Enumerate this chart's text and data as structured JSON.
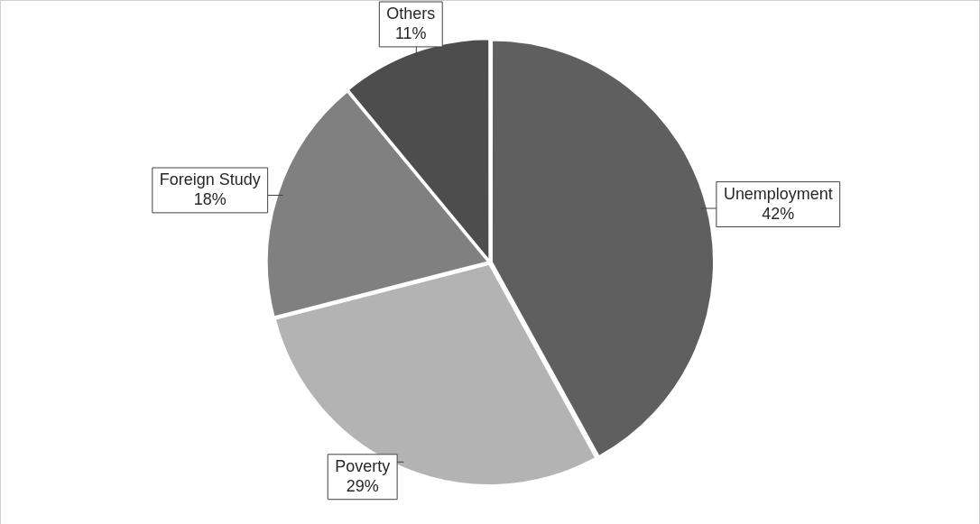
{
  "chart_data": {
    "type": "pie",
    "categories": [
      "Unemployment",
      "Poverty",
      "Foreign Study",
      "Others"
    ],
    "values": [
      42,
      29,
      18,
      11
    ],
    "colors": [
      "#5f5f5f",
      "#b3b3b3",
      "#808080",
      "#4d4d4d"
    ],
    "value_labels": [
      "42%",
      "29%",
      "18%",
      "11%"
    ],
    "legend": false
  }
}
